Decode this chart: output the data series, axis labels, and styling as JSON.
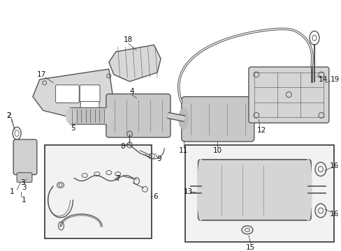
{
  "bg_color": "#ffffff",
  "fig_width": 4.89,
  "fig_height": 3.6,
  "dpi": 100,
  "gray": "#555555",
  "dgray": "#333333",
  "lgray": "#aaaaaa",
  "fill_light": "#e8e8e8",
  "fill_med": "#cccccc",
  "fill_dark": "#bbbbbb",
  "inset_fill": "#f2f2f2",
  "label_fontsize": 7.5
}
